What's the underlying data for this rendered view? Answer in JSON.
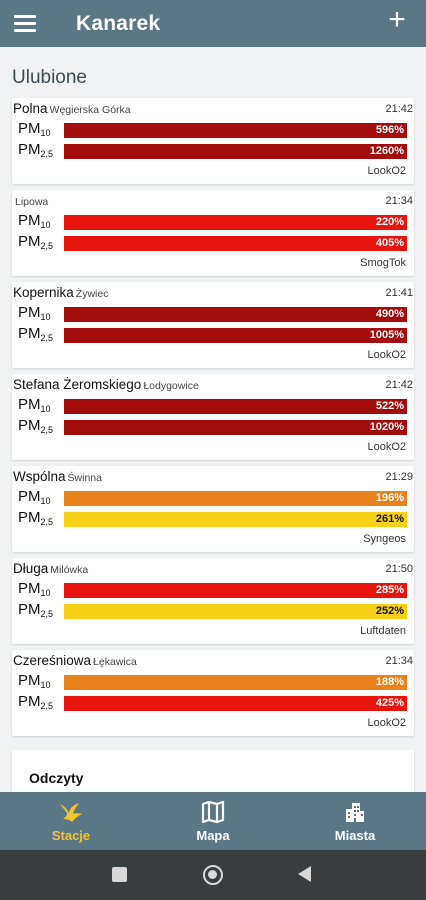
{
  "app": {
    "title": "Kanarek"
  },
  "section_title": "Ulubione",
  "pm10_label": "PM",
  "pm10_sub": "10",
  "pm25_label": "PM",
  "pm25_sub": "2,5",
  "colors": {
    "appbar": "#5a7787",
    "very_bad": "#a30c0c",
    "bad": "#e8150f",
    "poor": "#e8821a",
    "moderate": "#f7d117",
    "active_nav": "#f4c430"
  },
  "stations": [
    {
      "name": "Polna",
      "city": "Węgierska Górka",
      "time": "21:42",
      "pm10": {
        "value": "596%",
        "level": "very_bad"
      },
      "pm25": {
        "value": "1260%",
        "level": "very_bad"
      },
      "source": "LookO2"
    },
    {
      "name": "",
      "city": "Lipowa",
      "time": "21:34",
      "pm10": {
        "value": "220%",
        "level": "bad"
      },
      "pm25": {
        "value": "405%",
        "level": "bad"
      },
      "source": "SmogTok"
    },
    {
      "name": "Kopernika",
      "city": "Żywiec",
      "time": "21:41",
      "pm10": {
        "value": "490%",
        "level": "very_bad"
      },
      "pm25": {
        "value": "1005%",
        "level": "very_bad"
      },
      "source": "LookO2"
    },
    {
      "name": "Stefana Żeromskiego",
      "city": "Łodygowice",
      "time": "21:42",
      "pm10": {
        "value": "522%",
        "level": "very_bad"
      },
      "pm25": {
        "value": "1020%",
        "level": "very_bad"
      },
      "source": "LookO2"
    },
    {
      "name": "Wspólna",
      "city": "Świnna",
      "time": "21:29",
      "pm10": {
        "value": "196%",
        "level": "poor"
      },
      "pm25": {
        "value": "261%",
        "level": "moderate"
      },
      "source": "Syngeos"
    },
    {
      "name": "Długa",
      "city": "Milówka",
      "time": "21:50",
      "pm10": {
        "value": "285%",
        "level": "bad"
      },
      "pm25": {
        "value": "252%",
        "level": "moderate"
      },
      "source": "Luftdaten"
    },
    {
      "name": "Czereśniowa",
      "city": "Łękawica",
      "time": "21:34",
      "pm10": {
        "value": "188%",
        "level": "poor"
      },
      "pm25": {
        "value": "425%",
        "level": "bad"
      },
      "source": "LookO2"
    }
  ],
  "readings": {
    "title": "Odczyty"
  },
  "nav": {
    "items": [
      {
        "label": "Stacje",
        "icon": "bird-icon",
        "active": true
      },
      {
        "label": "Mapa",
        "icon": "map-icon",
        "active": false
      },
      {
        "label": "Miasta",
        "icon": "city-icon",
        "active": false
      }
    ]
  }
}
